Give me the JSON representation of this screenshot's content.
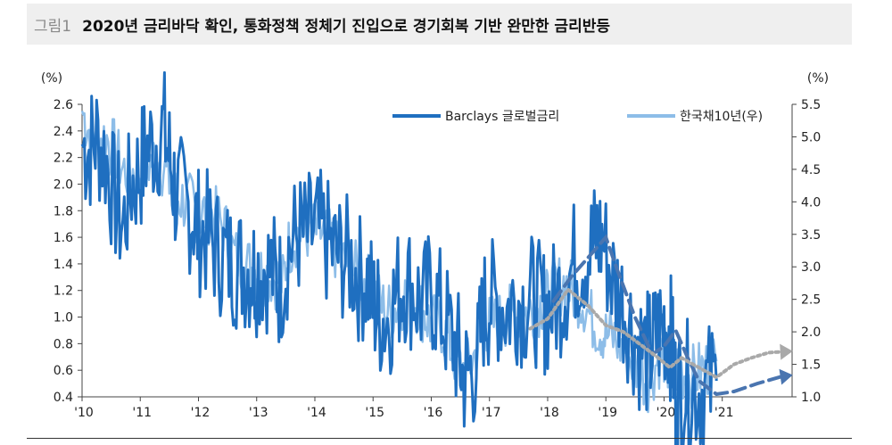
{
  "header": {
    "figure_label": "그림1",
    "title": "2020년 금리바닥 확인, 통화정책 정체기 진입으로 경기회복 기반 완만한 금리반등"
  },
  "chart_data": {
    "type": "line",
    "left_axis": {
      "unit": "(%)",
      "ylim": [
        0.4,
        2.6
      ],
      "ticks": [
        "2.6",
        "2.4",
        "2.2",
        "2.0",
        "1.8",
        "1.6",
        "1.4",
        "1.2",
        "1.0",
        "0.8",
        "0.6",
        "0.4"
      ]
    },
    "right_axis": {
      "unit": "(%)",
      "ylim": [
        1.0,
        5.5
      ],
      "ticks": [
        "5.5",
        "5.0",
        "4.5",
        "4.0",
        "3.5",
        "3.0",
        "2.5",
        "2.0",
        "1.5",
        "1.0"
      ]
    },
    "x_ticks": [
      "'10",
      "'11",
      "'12",
      "'13",
      "'14",
      "'15",
      "'16",
      "'17",
      "'18",
      "'19",
      "'20",
      "'21"
    ],
    "x_range": [
      2010.0,
      2022.2
    ],
    "grid": false,
    "legend_position": "top",
    "series": [
      {
        "name": "Barclays 글로벌금리",
        "axis": "left",
        "color": "#1f6fc0",
        "x": [
          2010.0,
          2010.12,
          2010.25,
          2010.4,
          2010.55,
          2010.7,
          2010.85,
          2011.0,
          2011.1,
          2011.25,
          2011.4,
          2011.5,
          2011.6,
          2011.75,
          2011.9,
          2012.0,
          2012.15,
          2012.3,
          2012.45,
          2012.6,
          2012.75,
          2012.9,
          2013.0,
          2013.15,
          2013.3,
          2013.4,
          2013.55,
          2013.7,
          2013.85,
          2014.0,
          2014.15,
          2014.3,
          2014.45,
          2014.6,
          2014.75,
          2014.9,
          2015.0,
          2015.1,
          2015.25,
          2015.4,
          2015.55,
          2015.7,
          2015.85,
          2016.0,
          2016.15,
          2016.3,
          2016.45,
          2016.55,
          2016.65,
          2016.8,
          2016.9,
          2017.0,
          2017.15,
          2017.3,
          2017.45,
          2017.6,
          2017.75,
          2017.9,
          2018.0,
          2018.15,
          2018.3,
          2018.45,
          2018.6,
          2018.75,
          2018.85,
          2018.95,
          2019.1,
          2019.25,
          2019.4,
          2019.55,
          2019.7,
          2019.8,
          2019.9,
          2020.0,
          2020.1,
          2020.15,
          2020.2,
          2020.3,
          2020.45,
          2020.6,
          2020.75,
          2020.9
        ],
        "y": [
          2.3,
          2.25,
          2.35,
          2.2,
          1.9,
          1.68,
          2.0,
          2.1,
          2.25,
          2.32,
          2.42,
          2.2,
          1.95,
          1.85,
          1.78,
          1.65,
          1.62,
          1.52,
          1.45,
          1.4,
          1.38,
          1.36,
          1.35,
          1.38,
          1.32,
          1.22,
          1.5,
          1.62,
          1.6,
          1.65,
          1.6,
          1.5,
          1.45,
          1.42,
          1.3,
          1.28,
          1.1,
          1.02,
          0.98,
          1.18,
          1.28,
          1.2,
          1.08,
          1.2,
          1.05,
          0.9,
          0.75,
          0.55,
          0.58,
          0.68,
          1.05,
          1.1,
          1.12,
          1.05,
          1.15,
          1.1,
          1.15,
          1.05,
          1.05,
          1.12,
          1.25,
          1.4,
          1.45,
          1.52,
          1.6,
          1.58,
          1.3,
          1.15,
          0.98,
          0.8,
          0.72,
          0.75,
          0.88,
          0.95,
          0.9,
          0.7,
          0.42,
          0.5,
          0.48,
          0.45,
          0.47,
          0.52
        ]
      },
      {
        "name": "한국채10년(우)",
        "axis": "right",
        "color": "#8dbde8",
        "x": [
          2010.0,
          2010.12,
          2010.25,
          2010.4,
          2010.55,
          2010.7,
          2010.85,
          2011.0,
          2011.15,
          2011.3,
          2011.45,
          2011.6,
          2011.75,
          2011.9,
          2012.0,
          2012.15,
          2012.3,
          2012.45,
          2012.6,
          2012.75,
          2012.9,
          2013.0,
          2013.15,
          2013.3,
          2013.45,
          2013.55,
          2013.7,
          2013.85,
          2014.0,
          2014.15,
          2014.3,
          2014.45,
          2014.6,
          2014.75,
          2014.9,
          2015.0,
          2015.15,
          2015.3,
          2015.45,
          2015.6,
          2015.75,
          2015.9,
          2016.0,
          2016.15,
          2016.3,
          2016.45,
          2016.6,
          2016.75,
          2016.9,
          2017.0,
          2017.15,
          2017.3,
          2017.45,
          2017.6,
          2017.75,
          2017.9,
          2018.0,
          2018.15,
          2018.3,
          2018.45,
          2018.6,
          2018.75,
          2018.9,
          2019.0,
          2019.15,
          2019.3,
          2019.45,
          2019.6,
          2019.75,
          2019.9,
          2020.0,
          2020.1,
          2020.2,
          2020.3,
          2020.45,
          2020.6,
          2020.75,
          2020.9
        ],
        "y": [
          5.4,
          5.1,
          4.95,
          5.0,
          4.8,
          4.5,
          4.45,
          4.5,
          4.6,
          4.7,
          4.4,
          4.1,
          4.0,
          3.95,
          3.8,
          3.85,
          3.75,
          3.6,
          3.2,
          3.05,
          3.0,
          2.95,
          2.9,
          2.85,
          2.75,
          3.3,
          3.5,
          3.55,
          3.55,
          3.5,
          3.35,
          3.1,
          3.05,
          2.85,
          2.75,
          2.6,
          2.4,
          2.3,
          2.45,
          2.6,
          2.45,
          2.25,
          2.1,
          2.15,
          1.85,
          1.5,
          1.4,
          1.65,
          2.15,
          2.1,
          2.15,
          2.25,
          2.25,
          2.3,
          2.35,
          2.45,
          2.5,
          2.7,
          2.75,
          2.6,
          2.5,
          2.2,
          2.05,
          1.95,
          1.9,
          1.75,
          1.55,
          1.35,
          1.25,
          1.6,
          1.65,
          1.3,
          1.45,
          1.4,
          1.3,
          1.38,
          1.45,
          1.55
        ]
      }
    ],
    "projections": [
      {
        "color": "#4a75b0",
        "style": "dashed",
        "x": [
          2018.1,
          2018.4,
          2018.7,
          2019.0,
          2019.2,
          2019.5,
          2019.8,
          2020.0,
          2020.2,
          2020.4,
          2020.6,
          2020.9,
          2021.2,
          2021.6,
          2022.0,
          2022.15
        ],
        "y": [
          1.12,
          1.3,
          1.45,
          1.6,
          1.35,
          1.0,
          0.72,
          0.78,
          0.9,
          0.7,
          0.52,
          0.42,
          0.44,
          0.5,
          0.55,
          0.56
        ]
      },
      {
        "color": "#a9a9a9",
        "style": "dotted",
        "axis": "right",
        "x": [
          2017.7,
          2018.0,
          2018.35,
          2018.7,
          2019.0,
          2019.3,
          2019.6,
          2019.9,
          2020.1,
          2020.3,
          2020.6,
          2020.9,
          2021.2,
          2021.5,
          2021.8,
          2022.15
        ],
        "y": [
          2.05,
          2.2,
          2.65,
          2.4,
          2.1,
          2.0,
          1.8,
          1.6,
          1.45,
          1.6,
          1.45,
          1.3,
          1.5,
          1.6,
          1.68,
          1.7
        ]
      }
    ]
  }
}
